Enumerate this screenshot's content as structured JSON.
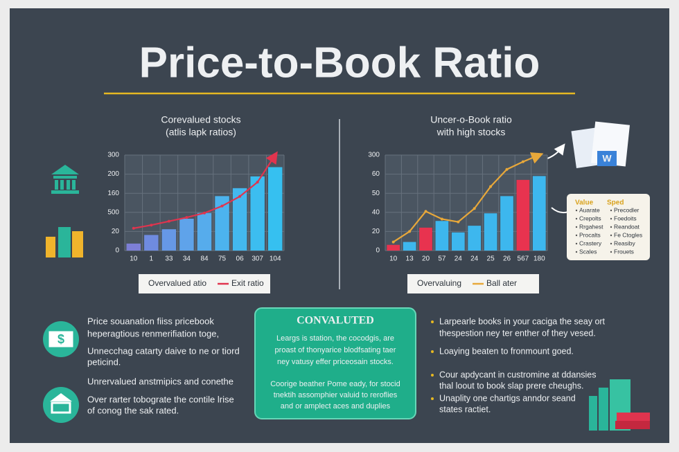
{
  "title": "Price-to-Book Ratio",
  "chart_data": [
    {
      "type": "bar",
      "title": "Corevalued stocks",
      "subtitle": "(atlis lapk ratios)",
      "categories": [
        "10",
        "1",
        "33",
        "34",
        "84",
        "75",
        "06",
        "307",
        "104"
      ],
      "ylim": [
        0,
        300
      ],
      "yticks": [
        0,
        {
          "value": 60,
          "label": "20"
        },
        {
          "value": 120,
          "label": "500"
        },
        {
          "value": 180,
          "label": "160"
        },
        {
          "value": 240,
          "label": "200"
        },
        300
      ],
      "grid": true,
      "series": [
        {
          "name": "Overvalued atio",
          "colors": [
            "#7d7fd6",
            "#6f8be0",
            "#6698e6",
            "#5fa3ea",
            "#56acec",
            "#4cb3ee",
            "#43b8ef",
            "#3cbdf0",
            "#36c0f0"
          ],
          "values": [
            22,
            49,
            67,
            100,
            118,
            171,
            196,
            233,
            262
          ]
        },
        {
          "name": "Exit ratio",
          "type": "line",
          "color": "#e0344e",
          "values": [
            70,
            80,
            92,
            104,
            118,
            140,
            170,
            215,
            300
          ]
        }
      ]
    },
    {
      "type": "bar",
      "title": "Uncer-o-Book ratio",
      "subtitle": "with high stocks",
      "categories": [
        "10",
        "13",
        "20",
        "57",
        "24",
        "24",
        "25",
        "26",
        "567",
        "180"
      ],
      "ylim": [
        0,
        100
      ],
      "yticks": [
        0,
        20,
        {
          "value": 40,
          "label": "40"
        },
        {
          "value": 60,
          "label": "50"
        },
        {
          "value": 80,
          "label": "60"
        },
        {
          "value": 100,
          "label": "300"
        }
      ],
      "grid": true,
      "series": [
        {
          "name": "Overvaluing",
          "colors": [
            "#e8334f",
            "#3db7ee",
            "#e8334f",
            "#3db7ee",
            "#3db7ee",
            "#3db7ee",
            "#3db7ee",
            "#3db7ee",
            "#e8334f",
            "#3db7ee"
          ],
          "values": [
            6,
            9,
            24,
            31,
            19,
            26,
            39,
            57,
            74,
            78
          ]
        },
        {
          "name": "Ball ater",
          "type": "line",
          "color": "#e8a83a",
          "values": [
            9,
            20,
            41,
            33,
            30,
            44,
            67,
            85,
            93,
            100
          ]
        }
      ]
    }
  ],
  "value_card": {
    "headers": [
      "Value",
      "Sped"
    ],
    "left": [
      "Auarate",
      "Crepolts",
      "Rrgahest",
      "Procalts",
      "Crastery",
      "Scales"
    ],
    "right": [
      "Precodler",
      "Foedoits",
      "Reandoat",
      "Fe Ctogles",
      "Reasiby",
      "Frouets"
    ]
  },
  "left_notes": [
    "Price souanation fiiss pricebook",
    "heperagtious renmerifiation toge,",
    "Unnecchag catarty daive to ne or tiord",
    "peticind.",
    "Unrervalued anstmipics and conethe",
    "Over rarter tobograte the contile lrise",
    "of conog the sak rated."
  ],
  "center_box": {
    "title": "CONVALUTED",
    "lines": [
      "Leargs is station, the cocodgis, are",
      "proast of thonyarice blodfsating taer",
      "ney vatusy effer priceosain stocks.",
      "Coorige beather Pome eady, for stocid",
      "tnektih assomphier valuid to reroflies",
      "and or amplect aces and duplies"
    ]
  },
  "right_notes": [
    "Larpearle books in your caciga the seay ort",
    "thespestion ney ter enther of they vesed.",
    "Loaying beaten to fronmount goed.",
    "Cour apdycant in custromine at ddansies",
    "thal loout to book slap prere cheughs.",
    "Unaplity one chartigs anndor seand",
    "states ractiet."
  ]
}
